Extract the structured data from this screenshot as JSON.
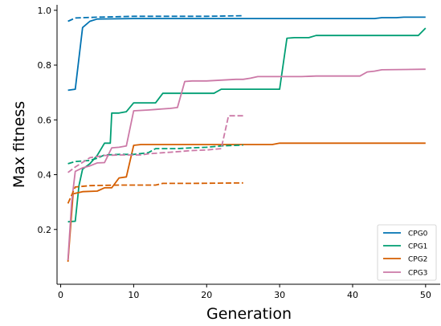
{
  "chart_data": {
    "type": "line",
    "title": "",
    "xlabel": "Generation",
    "ylabel": "Max fitness",
    "xlim": [
      -0.5,
      52.0
    ],
    "ylim": [
      0.0,
      1.02
    ],
    "xticks": [
      0,
      10,
      20,
      30,
      40,
      50
    ],
    "yticks": [
      0.2,
      0.4,
      0.6,
      0.8,
      1.0
    ],
    "xtick_labels": [
      "0",
      "10",
      "20",
      "30",
      "40",
      "50"
    ],
    "ytick_labels": [
      "0.2",
      "0.4",
      "0.6",
      "0.8",
      "1.0"
    ],
    "grid": false,
    "legend_position": "bottom-right",
    "series": [
      {
        "name": "CPG0",
        "color": "#0072b2",
        "style": "solid",
        "points": [
          [
            1,
            0.708
          ],
          [
            2,
            0.712
          ],
          [
            3,
            0.937
          ],
          [
            4,
            0.96
          ],
          [
            5,
            0.968
          ],
          [
            10,
            0.97
          ],
          [
            20,
            0.97
          ],
          [
            30,
            0.97
          ],
          [
            40,
            0.97
          ],
          [
            43,
            0.97
          ],
          [
            44,
            0.973
          ],
          [
            46,
            0.973
          ],
          [
            47,
            0.975
          ],
          [
            50,
            0.975
          ]
        ]
      },
      {
        "name": "CPG1",
        "color": "#009e73",
        "style": "solid",
        "points": [
          [
            1,
            0.228
          ],
          [
            2,
            0.23
          ],
          [
            2.5,
            0.36
          ],
          [
            3,
            0.42
          ],
          [
            4,
            0.44
          ],
          [
            5,
            0.47
          ],
          [
            6,
            0.515
          ],
          [
            6.8,
            0.515
          ],
          [
            7,
            0.625
          ],
          [
            8,
            0.625
          ],
          [
            9,
            0.63
          ],
          [
            10,
            0.662
          ],
          [
            12,
            0.662
          ],
          [
            13,
            0.662
          ],
          [
            14,
            0.697
          ],
          [
            17,
            0.697
          ],
          [
            21,
            0.697
          ],
          [
            22,
            0.712
          ],
          [
            26,
            0.712
          ],
          [
            30,
            0.712
          ],
          [
            31,
            0.898
          ],
          [
            32,
            0.9
          ],
          [
            34,
            0.9
          ],
          [
            35,
            0.908
          ],
          [
            49,
            0.908
          ],
          [
            50,
            0.935
          ]
        ]
      },
      {
        "name": "CPG2",
        "color": "#d55e00",
        "style": "solid",
        "points": [
          [
            1,
            0.082
          ],
          [
            1.7,
            0.33
          ],
          [
            3,
            0.338
          ],
          [
            5,
            0.34
          ],
          [
            6,
            0.352
          ],
          [
            7,
            0.352
          ],
          [
            8,
            0.388
          ],
          [
            9,
            0.392
          ],
          [
            10,
            0.507
          ],
          [
            11,
            0.51
          ],
          [
            20,
            0.51
          ],
          [
            25,
            0.51
          ],
          [
            28,
            0.51
          ],
          [
            29,
            0.51
          ],
          [
            30,
            0.515
          ],
          [
            40,
            0.515
          ],
          [
            50,
            0.515
          ]
        ]
      },
      {
        "name": "CPG3",
        "color": "#cc79a7",
        "style": "solid",
        "points": [
          [
            1,
            0.088
          ],
          [
            1.5,
            0.3
          ],
          [
            2,
            0.412
          ],
          [
            3,
            0.425
          ],
          [
            4,
            0.432
          ],
          [
            5,
            0.443
          ],
          [
            6,
            0.444
          ],
          [
            7,
            0.498
          ],
          [
            8,
            0.5
          ],
          [
            9,
            0.505
          ],
          [
            10,
            0.633
          ],
          [
            12,
            0.636
          ],
          [
            13,
            0.638
          ],
          [
            14,
            0.64
          ],
          [
            15,
            0.642
          ],
          [
            16,
            0.645
          ],
          [
            17,
            0.74
          ],
          [
            18,
            0.742
          ],
          [
            20,
            0.742
          ],
          [
            22,
            0.745
          ],
          [
            24,
            0.748
          ],
          [
            25,
            0.748
          ],
          [
            26,
            0.752
          ],
          [
            27,
            0.758
          ],
          [
            33,
            0.758
          ],
          [
            35,
            0.76
          ],
          [
            41,
            0.76
          ],
          [
            42,
            0.775
          ],
          [
            43,
            0.778
          ],
          [
            44,
            0.783
          ],
          [
            50,
            0.785
          ]
        ]
      },
      {
        "name": "",
        "color": "#0072b2",
        "style": "dashed",
        "points": [
          [
            1,
            0.96
          ],
          [
            2,
            0.972
          ],
          [
            5,
            0.975
          ],
          [
            10,
            0.978
          ],
          [
            15,
            0.978
          ],
          [
            20,
            0.978
          ],
          [
            25,
            0.98
          ]
        ]
      },
      {
        "name": "",
        "color": "#009e73",
        "style": "dashed",
        "points": [
          [
            1,
            0.44
          ],
          [
            2,
            0.448
          ],
          [
            4,
            0.452
          ],
          [
            5,
            0.46
          ],
          [
            6,
            0.472
          ],
          [
            8,
            0.474
          ],
          [
            10,
            0.474
          ],
          [
            12,
            0.48
          ],
          [
            13,
            0.495
          ],
          [
            16,
            0.495
          ],
          [
            18,
            0.498
          ],
          [
            20,
            0.5
          ],
          [
            22,
            0.505
          ],
          [
            25,
            0.508
          ]
        ]
      },
      {
        "name": "",
        "color": "#d55e00",
        "style": "dashed",
        "points": [
          [
            1,
            0.295
          ],
          [
            2,
            0.355
          ],
          [
            4,
            0.36
          ],
          [
            8,
            0.362
          ],
          [
            13,
            0.362
          ],
          [
            14,
            0.368
          ],
          [
            18,
            0.368
          ],
          [
            25,
            0.37
          ]
        ]
      },
      {
        "name": "",
        "color": "#cc79a7",
        "style": "dashed",
        "points": [
          [
            1,
            0.408
          ],
          [
            2,
            0.428
          ],
          [
            3,
            0.445
          ],
          [
            4,
            0.462
          ],
          [
            6,
            0.47
          ],
          [
            8,
            0.472
          ],
          [
            11,
            0.472
          ],
          [
            12,
            0.476
          ],
          [
            14,
            0.48
          ],
          [
            15,
            0.482
          ],
          [
            17,
            0.486
          ],
          [
            18,
            0.488
          ],
          [
            20,
            0.49
          ],
          [
            22,
            0.495
          ],
          [
            23,
            0.615
          ],
          [
            24,
            0.615
          ],
          [
            25,
            0.615
          ]
        ]
      }
    ]
  }
}
